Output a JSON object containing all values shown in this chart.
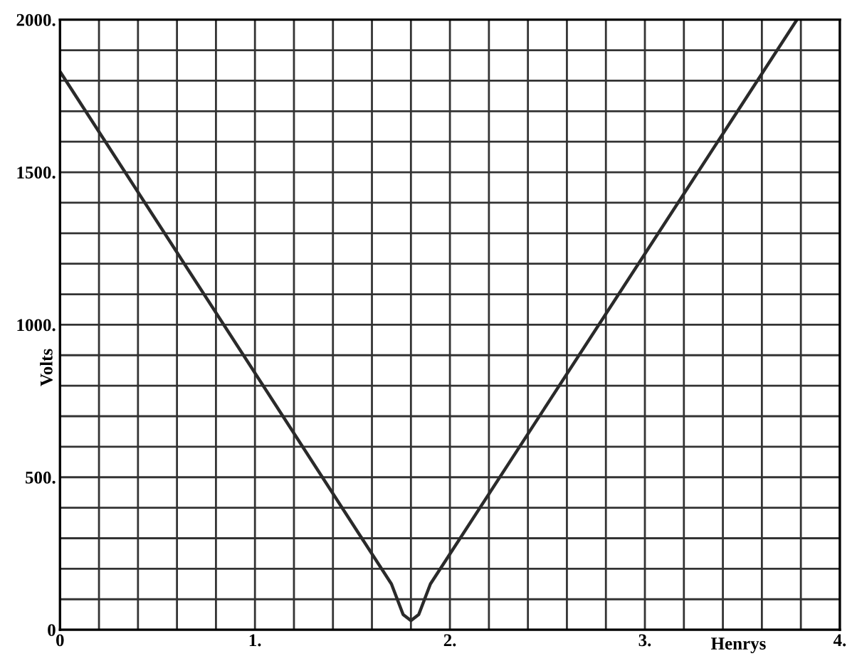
{
  "chart_data": {
    "type": "line",
    "xlabel": "Henrys",
    "ylabel": "Volts",
    "x": [
      0,
      1.7,
      1.76,
      1.8,
      1.84,
      1.9,
      3.78
    ],
    "series": [
      {
        "color": "#2a2a2a",
        "values": [
          1830,
          150,
          50,
          30,
          50,
          150,
          2000
        ]
      }
    ],
    "xlim": [
      0,
      4
    ],
    "ylim": [
      0,
      2000
    ],
    "xticks": [
      {
        "value": 0,
        "label": "0"
      },
      {
        "value": 0.2,
        "label": null
      },
      {
        "value": 0.4,
        "label": null
      },
      {
        "value": 0.6,
        "label": null
      },
      {
        "value": 0.8,
        "label": null
      },
      {
        "value": 1,
        "label": "1."
      },
      {
        "value": 1.2,
        "label": null
      },
      {
        "value": 1.4,
        "label": null
      },
      {
        "value": 1.6,
        "label": null
      },
      {
        "value": 1.8,
        "label": null
      },
      {
        "value": 2,
        "label": "2."
      },
      {
        "value": 2.2,
        "label": null
      },
      {
        "value": 2.4,
        "label": null
      },
      {
        "value": 2.6,
        "label": null
      },
      {
        "value": 2.8,
        "label": null
      },
      {
        "value": 3,
        "label": "3."
      },
      {
        "value": 3.2,
        "label": null
      },
      {
        "value": 3.4,
        "label": null
      },
      {
        "value": 3.6,
        "label": null
      },
      {
        "value": 3.8,
        "label": null
      },
      {
        "value": 4,
        "label": "4."
      }
    ],
    "yticks": [
      {
        "value": 0,
        "label": "0"
      },
      {
        "value": 100,
        "label": null
      },
      {
        "value": 200,
        "label": null
      },
      {
        "value": 300,
        "label": null
      },
      {
        "value": 400,
        "label": null
      },
      {
        "value": 500,
        "label": "500."
      },
      {
        "value": 600,
        "label": null
      },
      {
        "value": 700,
        "label": null
      },
      {
        "value": 800,
        "label": null
      },
      {
        "value": 900,
        "label": null
      },
      {
        "value": 1000,
        "label": "1000."
      },
      {
        "value": 1100,
        "label": null
      },
      {
        "value": 1200,
        "label": null
      },
      {
        "value": 1300,
        "label": null
      },
      {
        "value": 1400,
        "label": null
      },
      {
        "value": 1500,
        "label": "1500."
      },
      {
        "value": 1600,
        "label": null
      },
      {
        "value": 1700,
        "label": null
      },
      {
        "value": 1800,
        "label": null
      },
      {
        "value": 1900,
        "label": null
      },
      {
        "value": 2000,
        "label": "2000."
      }
    ],
    "grid": true,
    "marker": "none",
    "line_style": "solid"
  }
}
